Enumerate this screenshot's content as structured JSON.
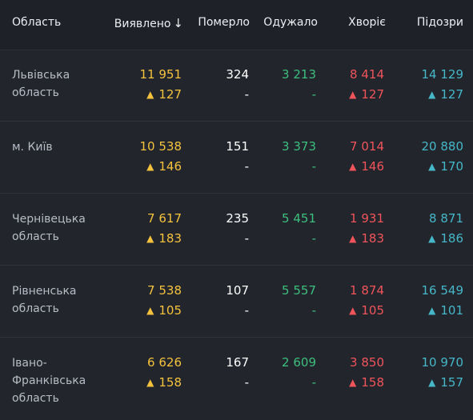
{
  "header": {
    "region": "Область",
    "detected": "Виявлено",
    "sort_icon": "arrow-down-icon",
    "died": "Померло",
    "recovered": "Одужало",
    "sick": "Хворіє",
    "suspected": "Підозри"
  },
  "colors": {
    "detected": "#f5c23e",
    "recovered": "#3dbf7e",
    "sick": "#f0545b",
    "suspected": "#45b7c8"
  },
  "rows": [
    {
      "region": "Львівська область",
      "detected": "11 951",
      "detected_delta": "127",
      "died": "324",
      "died_delta": "-",
      "recovered": "3 213",
      "recovered_delta": "-",
      "sick": "8 414",
      "sick_delta": "127",
      "suspected": "14 129",
      "suspected_delta": "127"
    },
    {
      "region": "м. Київ",
      "detected": "10 538",
      "detected_delta": "146",
      "died": "151",
      "died_delta": "-",
      "recovered": "3 373",
      "recovered_delta": "-",
      "sick": "7 014",
      "sick_delta": "146",
      "suspected": "20 880",
      "suspected_delta": "170"
    },
    {
      "region": "Чернівецька область",
      "detected": "7 617",
      "detected_delta": "183",
      "died": "235",
      "died_delta": "-",
      "recovered": "5 451",
      "recovered_delta": "-",
      "sick": "1 931",
      "sick_delta": "183",
      "suspected": "8 871",
      "suspected_delta": "186"
    },
    {
      "region": "Рівненська область",
      "detected": "7 538",
      "detected_delta": "105",
      "died": "107",
      "died_delta": "-",
      "recovered": "5 557",
      "recovered_delta": "-",
      "sick": "1 874",
      "sick_delta": "105",
      "suspected": "16 549",
      "suspected_delta": "101"
    },
    {
      "region": "Івано-Франківська область",
      "detected": "6 626",
      "detected_delta": "158",
      "died": "167",
      "died_delta": "-",
      "recovered": "2 609",
      "recovered_delta": "-",
      "sick": "3 850",
      "sick_delta": "158",
      "suspected": "10 970",
      "suspected_delta": "157"
    }
  ]
}
